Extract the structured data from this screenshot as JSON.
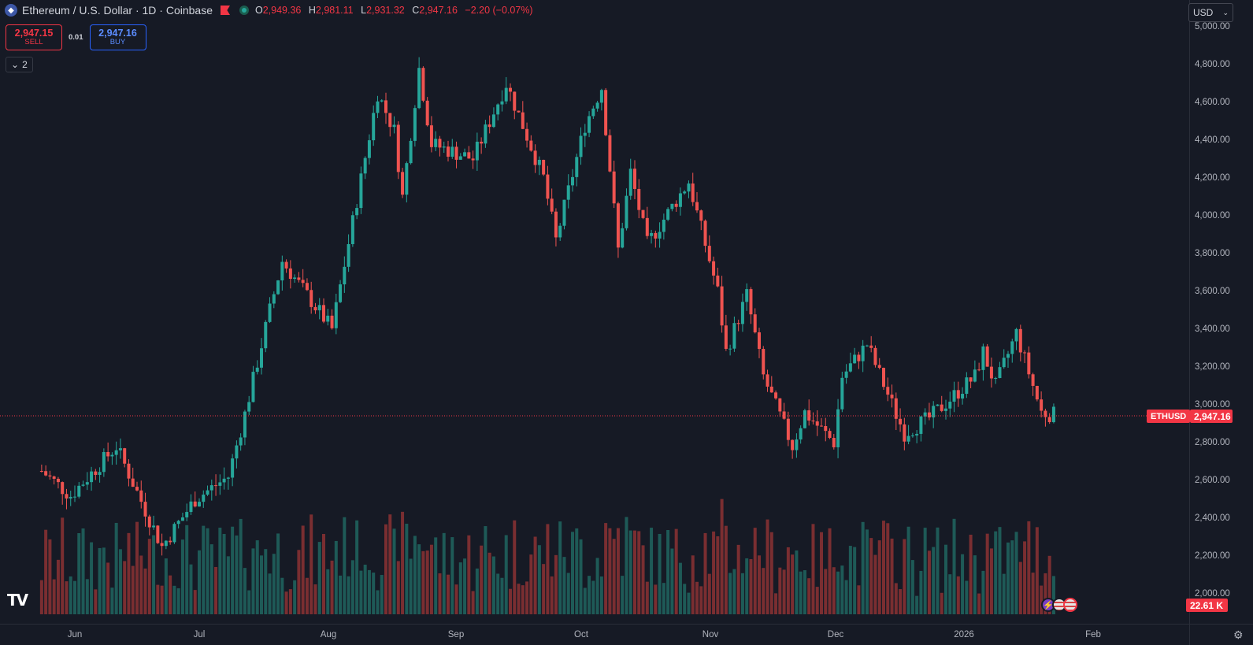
{
  "legend": {
    "symbol_title": "Ethereum / U.S. Dollar · 1D · Coinbase",
    "open_key": "O",
    "open": "2,949.36",
    "high_key": "H",
    "high": "2,981.11",
    "low_key": "L",
    "low": "2,931.32",
    "close_key": "C",
    "close": "2,947.16",
    "change": "−2.20 (−0.07%)",
    "logo_icon": "ethereum-icon"
  },
  "trade": {
    "sell_price": "2,947.15",
    "sell_label": "SELL",
    "spread": "0.01",
    "buy_price": "2,947.16",
    "buy_label": "BUY"
  },
  "indicators_collapse": {
    "count": "2"
  },
  "currency": {
    "value": "USD"
  },
  "price_axis": {
    "labels": [
      "5,000.00",
      "4,800.00",
      "4,600.00",
      "4,400.00",
      "4,200.00",
      "4,000.00",
      "3,800.00",
      "3,600.00",
      "3,400.00",
      "3,200.00",
      "3,000.00",
      "2,800.00",
      "2,600.00",
      "2,400.00",
      "2,200.00",
      "2,000.00"
    ],
    "last_price": "2,947.16",
    "symbol_tag": "ETHUSD",
    "volume_value": "22.61 K"
  },
  "time_axis": {
    "labels": [
      "Jun",
      "Jul",
      "Aug",
      "Sep",
      "Oct",
      "Nov",
      "Dec",
      "2026",
      "Feb"
    ]
  },
  "colors": {
    "up": "#26a69a",
    "down": "#ef5350",
    "up_volume": "#1e5a57",
    "down_volume": "#7a2e31",
    "background": "#161a25",
    "price_line": "#f23645"
  },
  "chart_data": {
    "type": "candlestick",
    "interval": "1D",
    "ylim": [
      2000,
      5000
    ],
    "key_points": [
      {
        "date": "2025-05-24",
        "close": 2650
      },
      {
        "date": "2025-05-31",
        "close": 2520
      },
      {
        "date": "2025-06-11",
        "close": 2780
      },
      {
        "date": "2025-06-22",
        "close": 2250
      },
      {
        "date": "2025-06-30",
        "close": 2500
      },
      {
        "date": "2025-07-08",
        "close": 2620
      },
      {
        "date": "2025-07-12",
        "close": 2950
      },
      {
        "date": "2025-07-18",
        "close": 3500
      },
      {
        "date": "2025-07-21",
        "close": 3760
      },
      {
        "date": "2025-08-02",
        "close": 3400
      },
      {
        "date": "2025-08-13",
        "close": 4650
      },
      {
        "date": "2025-08-17",
        "close": 4450
      },
      {
        "date": "2025-08-19",
        "close": 4100
      },
      {
        "date": "2025-08-23",
        "close": 4780
      },
      {
        "date": "2025-08-26",
        "close": 4380
      },
      {
        "date": "2025-09-05",
        "close": 4300
      },
      {
        "date": "2025-09-13",
        "close": 4700
      },
      {
        "date": "2025-09-22",
        "close": 4200
      },
      {
        "date": "2025-09-25",
        "close": 3870
      },
      {
        "date": "2025-10-02",
        "close": 4480
      },
      {
        "date": "2025-10-06",
        "close": 4680
      },
      {
        "date": "2025-10-10",
        "close": 3820
      },
      {
        "date": "2025-10-13",
        "close": 4230
      },
      {
        "date": "2025-10-17",
        "close": 3850
      },
      {
        "date": "2025-10-27",
        "close": 4180
      },
      {
        "date": "2025-11-03",
        "close": 3600
      },
      {
        "date": "2025-11-05",
        "close": 3280
      },
      {
        "date": "2025-11-10",
        "close": 3580
      },
      {
        "date": "2025-11-14",
        "close": 3150
      },
      {
        "date": "2025-11-21",
        "close": 2780
      },
      {
        "date": "2025-11-24",
        "close": 2960
      },
      {
        "date": "2025-12-01",
        "close": 2800
      },
      {
        "date": "2025-12-03",
        "close": 3150
      },
      {
        "date": "2025-12-09",
        "close": 3320
      },
      {
        "date": "2025-12-16",
        "close": 2950
      },
      {
        "date": "2025-12-18",
        "close": 2850
      },
      {
        "date": "2025-12-24",
        "close": 2930
      },
      {
        "date": "2026-01-04",
        "close": 3150
      },
      {
        "date": "2026-01-06",
        "close": 3280
      },
      {
        "date": "2026-01-09",
        "close": 3100
      },
      {
        "date": "2026-01-14",
        "close": 3380
      },
      {
        "date": "2026-01-20",
        "close": 2960
      },
      {
        "date": "2026-01-23",
        "close": 2947.16
      }
    ],
    "last_close": 2947.16,
    "last_volume": "22.61 K"
  }
}
